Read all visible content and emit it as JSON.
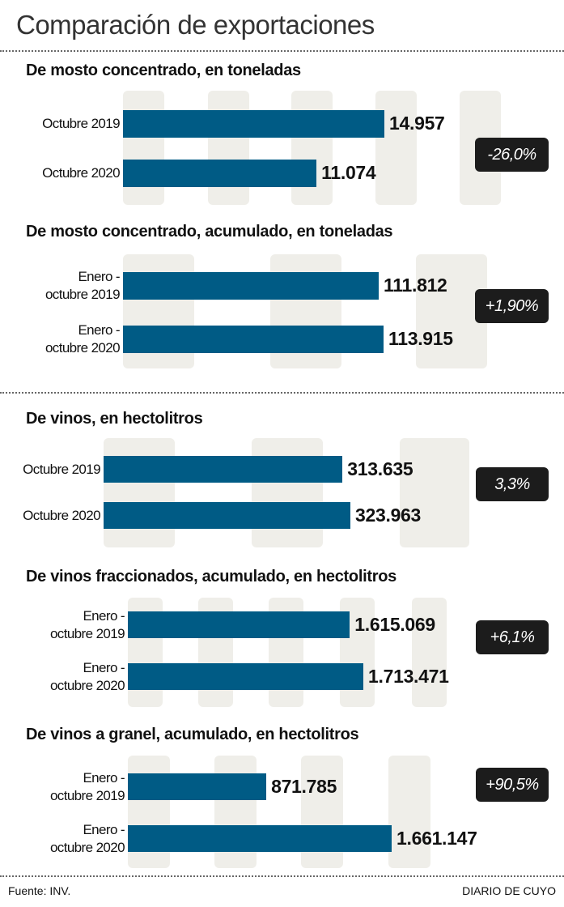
{
  "title": "Comparación de exportaciones",
  "footer": {
    "source": "Fuente: INV.",
    "brand": "DIARIO DE CUYO"
  },
  "colors": {
    "bar": "#005b85",
    "column_bg": "#efeee9",
    "badge": "#1c1c1c"
  },
  "chart_data": [
    {
      "type": "bar",
      "orientation": "horizontal",
      "title": "De mosto concentrado, en toneladas",
      "categories": [
        "Octubre 2019",
        "Octubre 2020"
      ],
      "values": [
        14957,
        11074
      ],
      "value_labels": [
        "14.957",
        "11.074"
      ],
      "change": "-26,0%"
    },
    {
      "type": "bar",
      "orientation": "horizontal",
      "title": "De mosto concentrado, acumulado, en toneladas",
      "categories": [
        "Enero -\noctubre 2019",
        "Enero -\noctubre 2020"
      ],
      "values": [
        111812,
        113915
      ],
      "value_labels": [
        "111.812",
        "113.915"
      ],
      "change": "+1,90%"
    },
    {
      "type": "bar",
      "orientation": "horizontal",
      "title": "De vinos, en hectolitros",
      "categories": [
        "Octubre 2019",
        "Octubre 2020"
      ],
      "values": [
        313635,
        323963
      ],
      "value_labels": [
        "313.635",
        "323.963"
      ],
      "change": "3,3%"
    },
    {
      "type": "bar",
      "orientation": "horizontal",
      "title": "De vinos fraccionados, acumulado, en hectolitros",
      "categories": [
        "Enero -\noctubre 2019",
        "Enero -\noctubre 2020"
      ],
      "values": [
        1615069,
        1713471
      ],
      "value_labels": [
        "1.615.069",
        "1.713.471"
      ],
      "change": "+6,1%"
    },
    {
      "type": "bar",
      "orientation": "horizontal",
      "title": "De vinos a granel, acumulado, en hectolitros",
      "categories": [
        "Enero -\noctubre 2019",
        "Enero -\noctubre 2020"
      ],
      "values": [
        871785,
        1661147
      ],
      "value_labels": [
        "871.785",
        "1.661.147"
      ],
      "change": "+90,5%"
    }
  ]
}
